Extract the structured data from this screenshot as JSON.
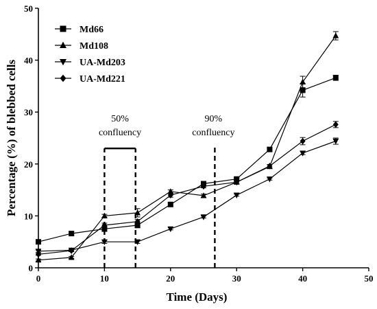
{
  "chart_data": {
    "type": "line",
    "xlabel": "Time (Days)",
    "ylabel": "Percentage (%) of blebbed cells",
    "xlim": [
      0,
      50
    ],
    "ylim": [
      0,
      50
    ],
    "xticks": [
      0,
      10,
      20,
      30,
      40,
      50
    ],
    "yticks": [
      0,
      10,
      20,
      30,
      40,
      50
    ],
    "grid": false,
    "legend_position": "top-left",
    "series": [
      {
        "name": "Md66",
        "marker": "square",
        "points": [
          {
            "x": 0,
            "y": 5.0,
            "err": 0.3
          },
          {
            "x": 5,
            "y": 6.6,
            "err": 0.4
          },
          {
            "x": 10,
            "y": 7.5,
            "err": 0.5
          },
          {
            "x": 15,
            "y": 8.2,
            "err": 0.5
          },
          {
            "x": 20,
            "y": 12.2,
            "err": 0.4
          },
          {
            "x": 25,
            "y": 16.2,
            "err": 0.3
          },
          {
            "x": 30,
            "y": 17.1,
            "err": 0.3
          },
          {
            "x": 35,
            "y": 22.8,
            "err": 0.4
          },
          {
            "x": 40,
            "y": 34.2,
            "err": 1.3
          },
          {
            "x": 45,
            "y": 36.6,
            "err": 0.5
          }
        ]
      },
      {
        "name": "Md108",
        "marker": "triangle-up",
        "points": [
          {
            "x": 0,
            "y": 1.5,
            "err": 0.2
          },
          {
            "x": 5,
            "y": 2.0,
            "err": 0.2
          },
          {
            "x": 10,
            "y": 10.0,
            "err": 0.3
          },
          {
            "x": 15,
            "y": 10.6,
            "err": 0.8
          },
          {
            "x": 20,
            "y": 14.7,
            "err": 0.3
          },
          {
            "x": 25,
            "y": 13.9,
            "err": 0.3
          },
          {
            "x": 30,
            "y": 16.5,
            "err": 0.3
          },
          {
            "x": 35,
            "y": 19.5,
            "err": 0.4
          },
          {
            "x": 40,
            "y": 35.8,
            "err": 1.1
          },
          {
            "x": 45,
            "y": 44.7,
            "err": 0.8
          }
        ]
      },
      {
        "name": "UA-Md203",
        "marker": "triangle-down",
        "points": [
          {
            "x": 0,
            "y": 3.2,
            "err": 0.2
          },
          {
            "x": 5,
            "y": 3.4,
            "err": 0.2
          },
          {
            "x": 10,
            "y": 5.0,
            "err": 0.3
          },
          {
            "x": 15,
            "y": 5.0,
            "err": 0.3
          },
          {
            "x": 20,
            "y": 7.5,
            "err": 0.2
          },
          {
            "x": 25,
            "y": 9.8,
            "err": 0.2
          },
          {
            "x": 30,
            "y": 14.0,
            "err": 0.2
          },
          {
            "x": 35,
            "y": 17.1,
            "err": 0.2
          },
          {
            "x": 40,
            "y": 22.1,
            "err": 0.3
          },
          {
            "x": 45,
            "y": 24.4,
            "err": 0.6
          }
        ]
      },
      {
        "name": "UA-Md221",
        "marker": "diamond",
        "points": [
          {
            "x": 0,
            "y": 2.6,
            "err": 0.2
          },
          {
            "x": 5,
            "y": 3.3,
            "err": 0.2
          },
          {
            "x": 10,
            "y": 8.2,
            "err": 0.4
          },
          {
            "x": 15,
            "y": 8.9,
            "err": 0.4
          },
          {
            "x": 20,
            "y": 14.0,
            "err": 0.4
          },
          {
            "x": 25,
            "y": 15.7,
            "err": 0.3
          },
          {
            "x": 30,
            "y": 16.5,
            "err": 0.3
          },
          {
            "x": 35,
            "y": 19.6,
            "err": 0.3
          },
          {
            "x": 40,
            "y": 24.4,
            "err": 0.7
          },
          {
            "x": 45,
            "y": 27.6,
            "err": 0.6
          }
        ]
      }
    ],
    "annotations": [
      {
        "lines": [
          "50%",
          "confluency"
        ],
        "bracket": {
          "x_start": 10,
          "x_end": 14.7,
          "y_top": 23
        }
      },
      {
        "lines": [
          "90%",
          "confluency"
        ],
        "dashed_line": {
          "x": 26.7,
          "y_top": 23
        }
      }
    ]
  }
}
